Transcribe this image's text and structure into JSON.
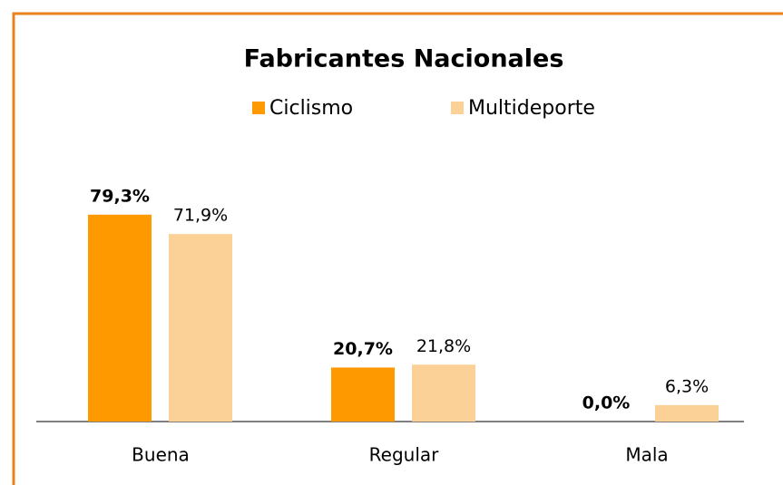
{
  "chart_data": {
    "type": "bar",
    "title": "Fabricantes Nacionales",
    "categories": [
      "Buena",
      "Regular",
      "Mala"
    ],
    "series": [
      {
        "name": "Ciclismo",
        "color": "#ff9900",
        "values": [
          79.3,
          20.7,
          0.0
        ],
        "value_labels": [
          "79,3%",
          "20,7%",
          "0,0%"
        ]
      },
      {
        "name": "Multideporte",
        "color": "#fcd198",
        "values": [
          71.9,
          21.8,
          6.3
        ],
        "value_labels": [
          "71,9%",
          "21,8%",
          "6,3%"
        ]
      }
    ],
    "ylim": [
      0,
      90
    ],
    "grid": false
  }
}
